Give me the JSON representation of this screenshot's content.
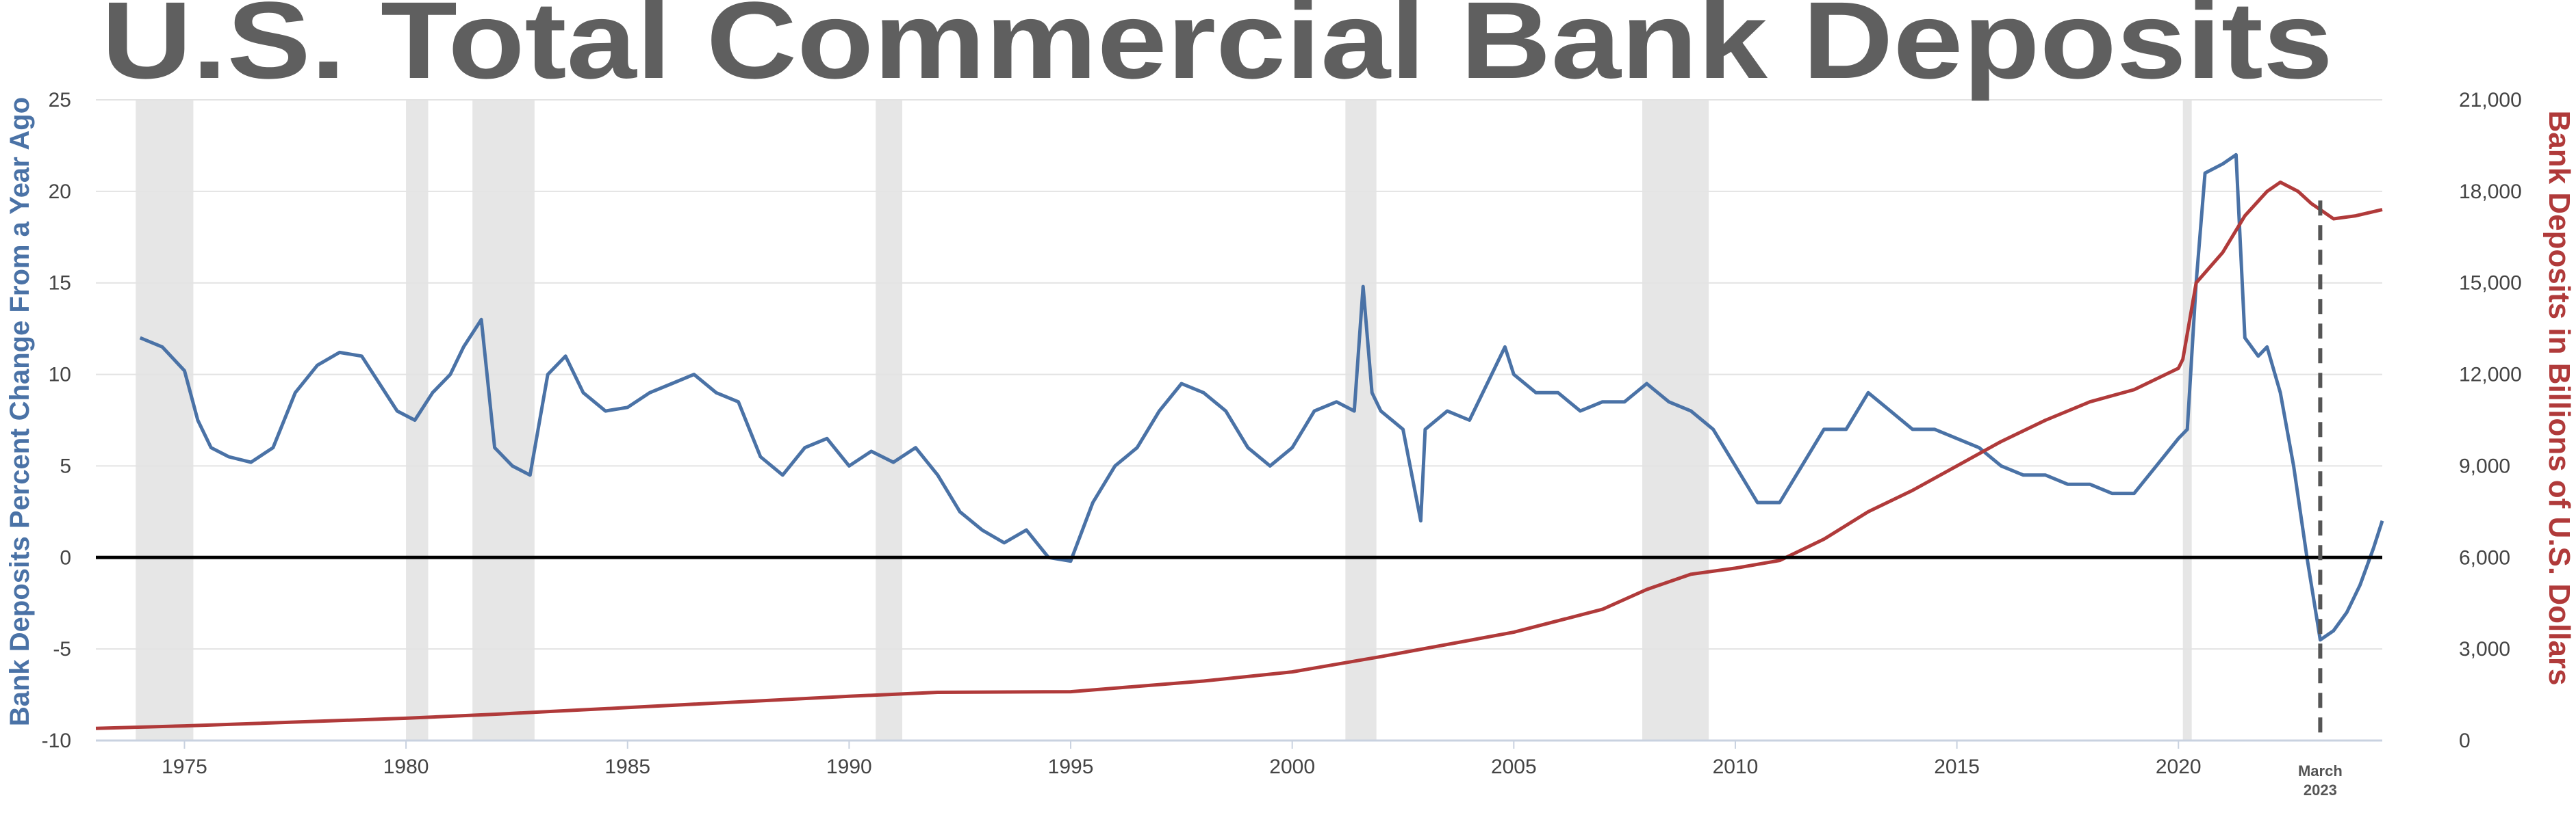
{
  "chart_data": {
    "type": "line",
    "title": "U.S. Total Commercial Bank  Deposits",
    "y_left_label": "Bank Deposits Percent Change From a Year Ago",
    "y_right_label": "Bank Deposits in Billions of U.S. Dollars",
    "x_range": [
      1973,
      2024.6
    ],
    "y_left_range": [
      -10,
      25
    ],
    "y_right_range": [
      0,
      21000
    ],
    "x_ticks": [
      "1975",
      "1980",
      "1985",
      "1990",
      "1995",
      "2000",
      "2005",
      "2010",
      "2015",
      "2020"
    ],
    "y_left_ticks": [
      "-10",
      "-5",
      "0",
      "5",
      "10",
      "15",
      "20",
      "25"
    ],
    "y_right_ticks": [
      "0",
      "3,000",
      "6,000",
      "9,000",
      "12,000",
      "15,000",
      "18,000",
      "21,000"
    ],
    "grid": true,
    "recessions": [
      [
        1973.9,
        1975.2
      ],
      [
        1980.0,
        1980.5
      ],
      [
        1981.5,
        1982.9
      ],
      [
        1990.6,
        1991.2
      ],
      [
        2001.2,
        2001.9
      ],
      [
        2007.9,
        2009.4
      ],
      [
        2020.1,
        2020.3
      ]
    ],
    "annotation": {
      "line1": "March",
      "line2": "2023",
      "x": 2023.2
    },
    "series": [
      {
        "color": "#4a72a6",
        "axis": "left",
        "points": [
          [
            1974.0,
            12.0
          ],
          [
            1974.5,
            11.5
          ],
          [
            1975.0,
            10.2
          ],
          [
            1975.3,
            7.5
          ],
          [
            1975.6,
            6.0
          ],
          [
            1976.0,
            5.5
          ],
          [
            1976.5,
            5.2
          ],
          [
            1977.0,
            6.0
          ],
          [
            1977.5,
            9.0
          ],
          [
            1978.0,
            10.5
          ],
          [
            1978.5,
            11.2
          ],
          [
            1979.0,
            11.0
          ],
          [
            1979.4,
            9.5
          ],
          [
            1979.8,
            8.0
          ],
          [
            1980.2,
            7.5
          ],
          [
            1980.6,
            9.0
          ],
          [
            1981.0,
            10.0
          ],
          [
            1981.3,
            11.5
          ],
          [
            1981.7,
            13.0
          ],
          [
            1982.0,
            6.0
          ],
          [
            1982.4,
            5.0
          ],
          [
            1982.8,
            4.5
          ],
          [
            1983.2,
            10.0
          ],
          [
            1983.6,
            11.0
          ],
          [
            1984.0,
            9.0
          ],
          [
            1984.5,
            8.0
          ],
          [
            1985.0,
            8.2
          ],
          [
            1985.5,
            9.0
          ],
          [
            1986.0,
            9.5
          ],
          [
            1986.5,
            10.0
          ],
          [
            1987.0,
            9.0
          ],
          [
            1987.5,
            8.5
          ],
          [
            1988.0,
            5.5
          ],
          [
            1988.5,
            4.5
          ],
          [
            1989.0,
            6.0
          ],
          [
            1989.5,
            6.5
          ],
          [
            1990.0,
            5.0
          ],
          [
            1990.5,
            5.8
          ],
          [
            1991.0,
            5.2
          ],
          [
            1991.5,
            6.0
          ],
          [
            1992.0,
            4.5
          ],
          [
            1992.5,
            2.5
          ],
          [
            1993.0,
            1.5
          ],
          [
            1993.5,
            0.8
          ],
          [
            1994.0,
            1.5
          ],
          [
            1994.5,
            0.0
          ],
          [
            1995.0,
            -0.2
          ],
          [
            1995.5,
            3.0
          ],
          [
            1996.0,
            5.0
          ],
          [
            1996.5,
            6.0
          ],
          [
            1997.0,
            8.0
          ],
          [
            1997.5,
            9.5
          ],
          [
            1998.0,
            9.0
          ],
          [
            1998.5,
            8.0
          ],
          [
            1999.0,
            6.0
          ],
          [
            1999.5,
            5.0
          ],
          [
            2000.0,
            6.0
          ],
          [
            2000.5,
            8.0
          ],
          [
            2001.0,
            8.5
          ],
          [
            2001.4,
            8.0
          ],
          [
            2001.6,
            14.8
          ],
          [
            2001.8,
            9.0
          ],
          [
            2002.0,
            8.0
          ],
          [
            2002.5,
            7.0
          ],
          [
            2002.9,
            2.0
          ],
          [
            2003.0,
            7.0
          ],
          [
            2003.5,
            8.0
          ],
          [
            2004.0,
            7.5
          ],
          [
            2004.5,
            10.0
          ],
          [
            2004.8,
            11.5
          ],
          [
            2005.0,
            10.0
          ],
          [
            2005.5,
            9.0
          ],
          [
            2006.0,
            9.0
          ],
          [
            2006.5,
            8.0
          ],
          [
            2007.0,
            8.5
          ],
          [
            2007.5,
            8.5
          ],
          [
            2008.0,
            9.5
          ],
          [
            2008.5,
            8.5
          ],
          [
            2009.0,
            8.0
          ],
          [
            2009.5,
            7.0
          ],
          [
            2010.0,
            5.0
          ],
          [
            2010.5,
            3.0
          ],
          [
            2011.0,
            3.0
          ],
          [
            2011.5,
            5.0
          ],
          [
            2012.0,
            7.0
          ],
          [
            2012.5,
            7.0
          ],
          [
            2013.0,
            9.0
          ],
          [
            2013.5,
            8.0
          ],
          [
            2014.0,
            7.0
          ],
          [
            2014.5,
            7.0
          ],
          [
            2015.0,
            6.5
          ],
          [
            2015.5,
            6.0
          ],
          [
            2016.0,
            5.0
          ],
          [
            2016.5,
            4.5
          ],
          [
            2017.0,
            4.5
          ],
          [
            2017.5,
            4.0
          ],
          [
            2018.0,
            4.0
          ],
          [
            2018.5,
            3.5
          ],
          [
            2019.0,
            3.5
          ],
          [
            2019.5,
            5.0
          ],
          [
            2020.0,
            6.5
          ],
          [
            2020.2,
            7.0
          ],
          [
            2020.4,
            15.0
          ],
          [
            2020.6,
            21.0
          ],
          [
            2021.0,
            21.5
          ],
          [
            2021.3,
            22.0
          ],
          [
            2021.5,
            12.0
          ],
          [
            2021.8,
            11.0
          ],
          [
            2022.0,
            11.5
          ],
          [
            2022.3,
            9.0
          ],
          [
            2022.6,
            5.0
          ],
          [
            2022.9,
            0.0
          ],
          [
            2023.2,
            -4.5
          ],
          [
            2023.5,
            -4.0
          ],
          [
            2023.8,
            -3.0
          ],
          [
            2024.1,
            -1.5
          ],
          [
            2024.4,
            0.5
          ],
          [
            2024.6,
            2.0
          ]
        ]
      },
      {
        "color": "#b03a3a",
        "axis": "right",
        "points": [
          [
            1973.0,
            400
          ],
          [
            1975.0,
            480
          ],
          [
            1980.0,
            730
          ],
          [
            1982.0,
            860
          ],
          [
            1985.0,
            1080
          ],
          [
            1990.0,
            1450
          ],
          [
            1992.0,
            1580
          ],
          [
            1995.0,
            1600
          ],
          [
            1998.0,
            1950
          ],
          [
            2000.0,
            2250
          ],
          [
            2002.0,
            2750
          ],
          [
            2005.0,
            3550
          ],
          [
            2007.0,
            4300
          ],
          [
            2008.0,
            4950
          ],
          [
            2009.0,
            5450
          ],
          [
            2010.0,
            5650
          ],
          [
            2011.0,
            5900
          ],
          [
            2012.0,
            6600
          ],
          [
            2013.0,
            7500
          ],
          [
            2014.0,
            8200
          ],
          [
            2015.0,
            9000
          ],
          [
            2016.0,
            9800
          ],
          [
            2017.0,
            10500
          ],
          [
            2018.0,
            11100
          ],
          [
            2019.0,
            11500
          ],
          [
            2020.0,
            12200
          ],
          [
            2020.1,
            12500
          ],
          [
            2020.4,
            15000
          ],
          [
            2021.0,
            16000
          ],
          [
            2021.5,
            17200
          ],
          [
            2022.0,
            18000
          ],
          [
            2022.3,
            18300
          ],
          [
            2022.7,
            18000
          ],
          [
            2023.0,
            17600
          ],
          [
            2023.2,
            17400
          ],
          [
            2023.5,
            17100
          ],
          [
            2024.0,
            17200
          ],
          [
            2024.6,
            17400
          ]
        ]
      }
    ]
  }
}
